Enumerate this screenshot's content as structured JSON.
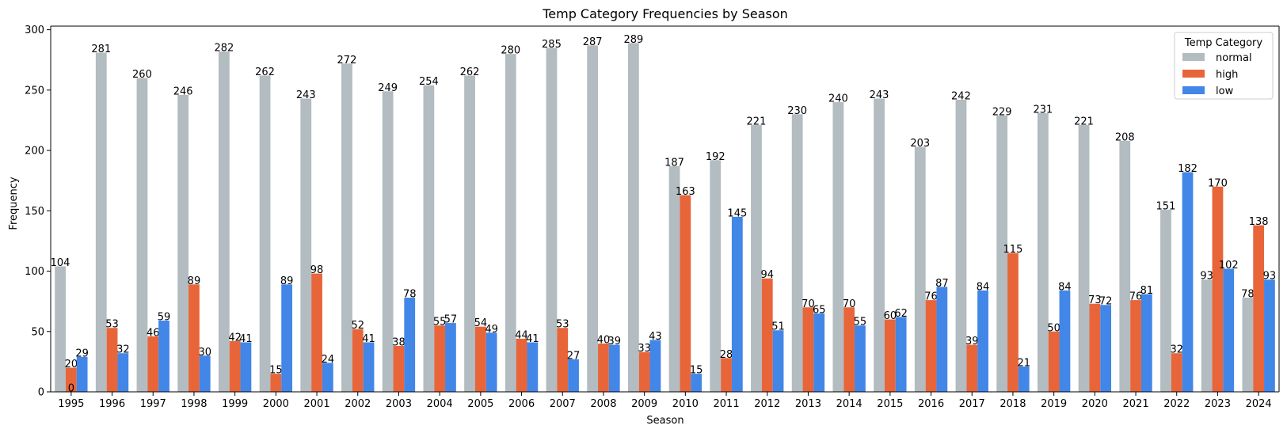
{
  "chart_data": {
    "type": "bar",
    "title": "Temp Category Frequencies by Season",
    "xlabel": "Season",
    "ylabel": "Frequency",
    "ylim": [
      0,
      303
    ],
    "yticks": [
      0,
      50,
      100,
      150,
      200,
      250,
      300
    ],
    "legend": {
      "title": "Temp Category",
      "position": "top-right"
    },
    "categories": [
      "1995",
      "1996",
      "1997",
      "1998",
      "1999",
      "2000",
      "2001",
      "2002",
      "2003",
      "2004",
      "2005",
      "2006",
      "2007",
      "2008",
      "2009",
      "2010",
      "2011",
      "2012",
      "2013",
      "2014",
      "2015",
      "2016",
      "2017",
      "2018",
      "2019",
      "2020",
      "2021",
      "2022",
      "2023",
      "2024"
    ],
    "series": [
      {
        "name": "normal",
        "color": "#b3bcc0",
        "values": [
          104,
          281,
          260,
          246,
          282,
          262,
          243,
          272,
          249,
          254,
          262,
          280,
          285,
          287,
          289,
          187,
          192,
          221,
          230,
          240,
          243,
          203,
          242,
          229,
          231,
          221,
          208,
          151,
          93,
          78
        ]
      },
      {
        "name": "high",
        "color": "#e8653a",
        "values": [
          20,
          53,
          46,
          89,
          42,
          15,
          98,
          52,
          38,
          55,
          54,
          44,
          53,
          40,
          33,
          163,
          28,
          94,
          70,
          70,
          60,
          76,
          39,
          115,
          50,
          73,
          76,
          32,
          170,
          138
        ]
      },
      {
        "name": "low",
        "color": "#4286e8",
        "values": [
          29,
          32,
          59,
          30,
          41,
          89,
          24,
          41,
          78,
          57,
          49,
          41,
          27,
          39,
          43,
          15,
          145,
          51,
          65,
          55,
          62,
          87,
          84,
          21,
          84,
          72,
          81,
          182,
          102,
          93
        ]
      }
    ],
    "extra_labels": [
      {
        "category": "1995",
        "text": "0"
      }
    ],
    "grid": false
  }
}
